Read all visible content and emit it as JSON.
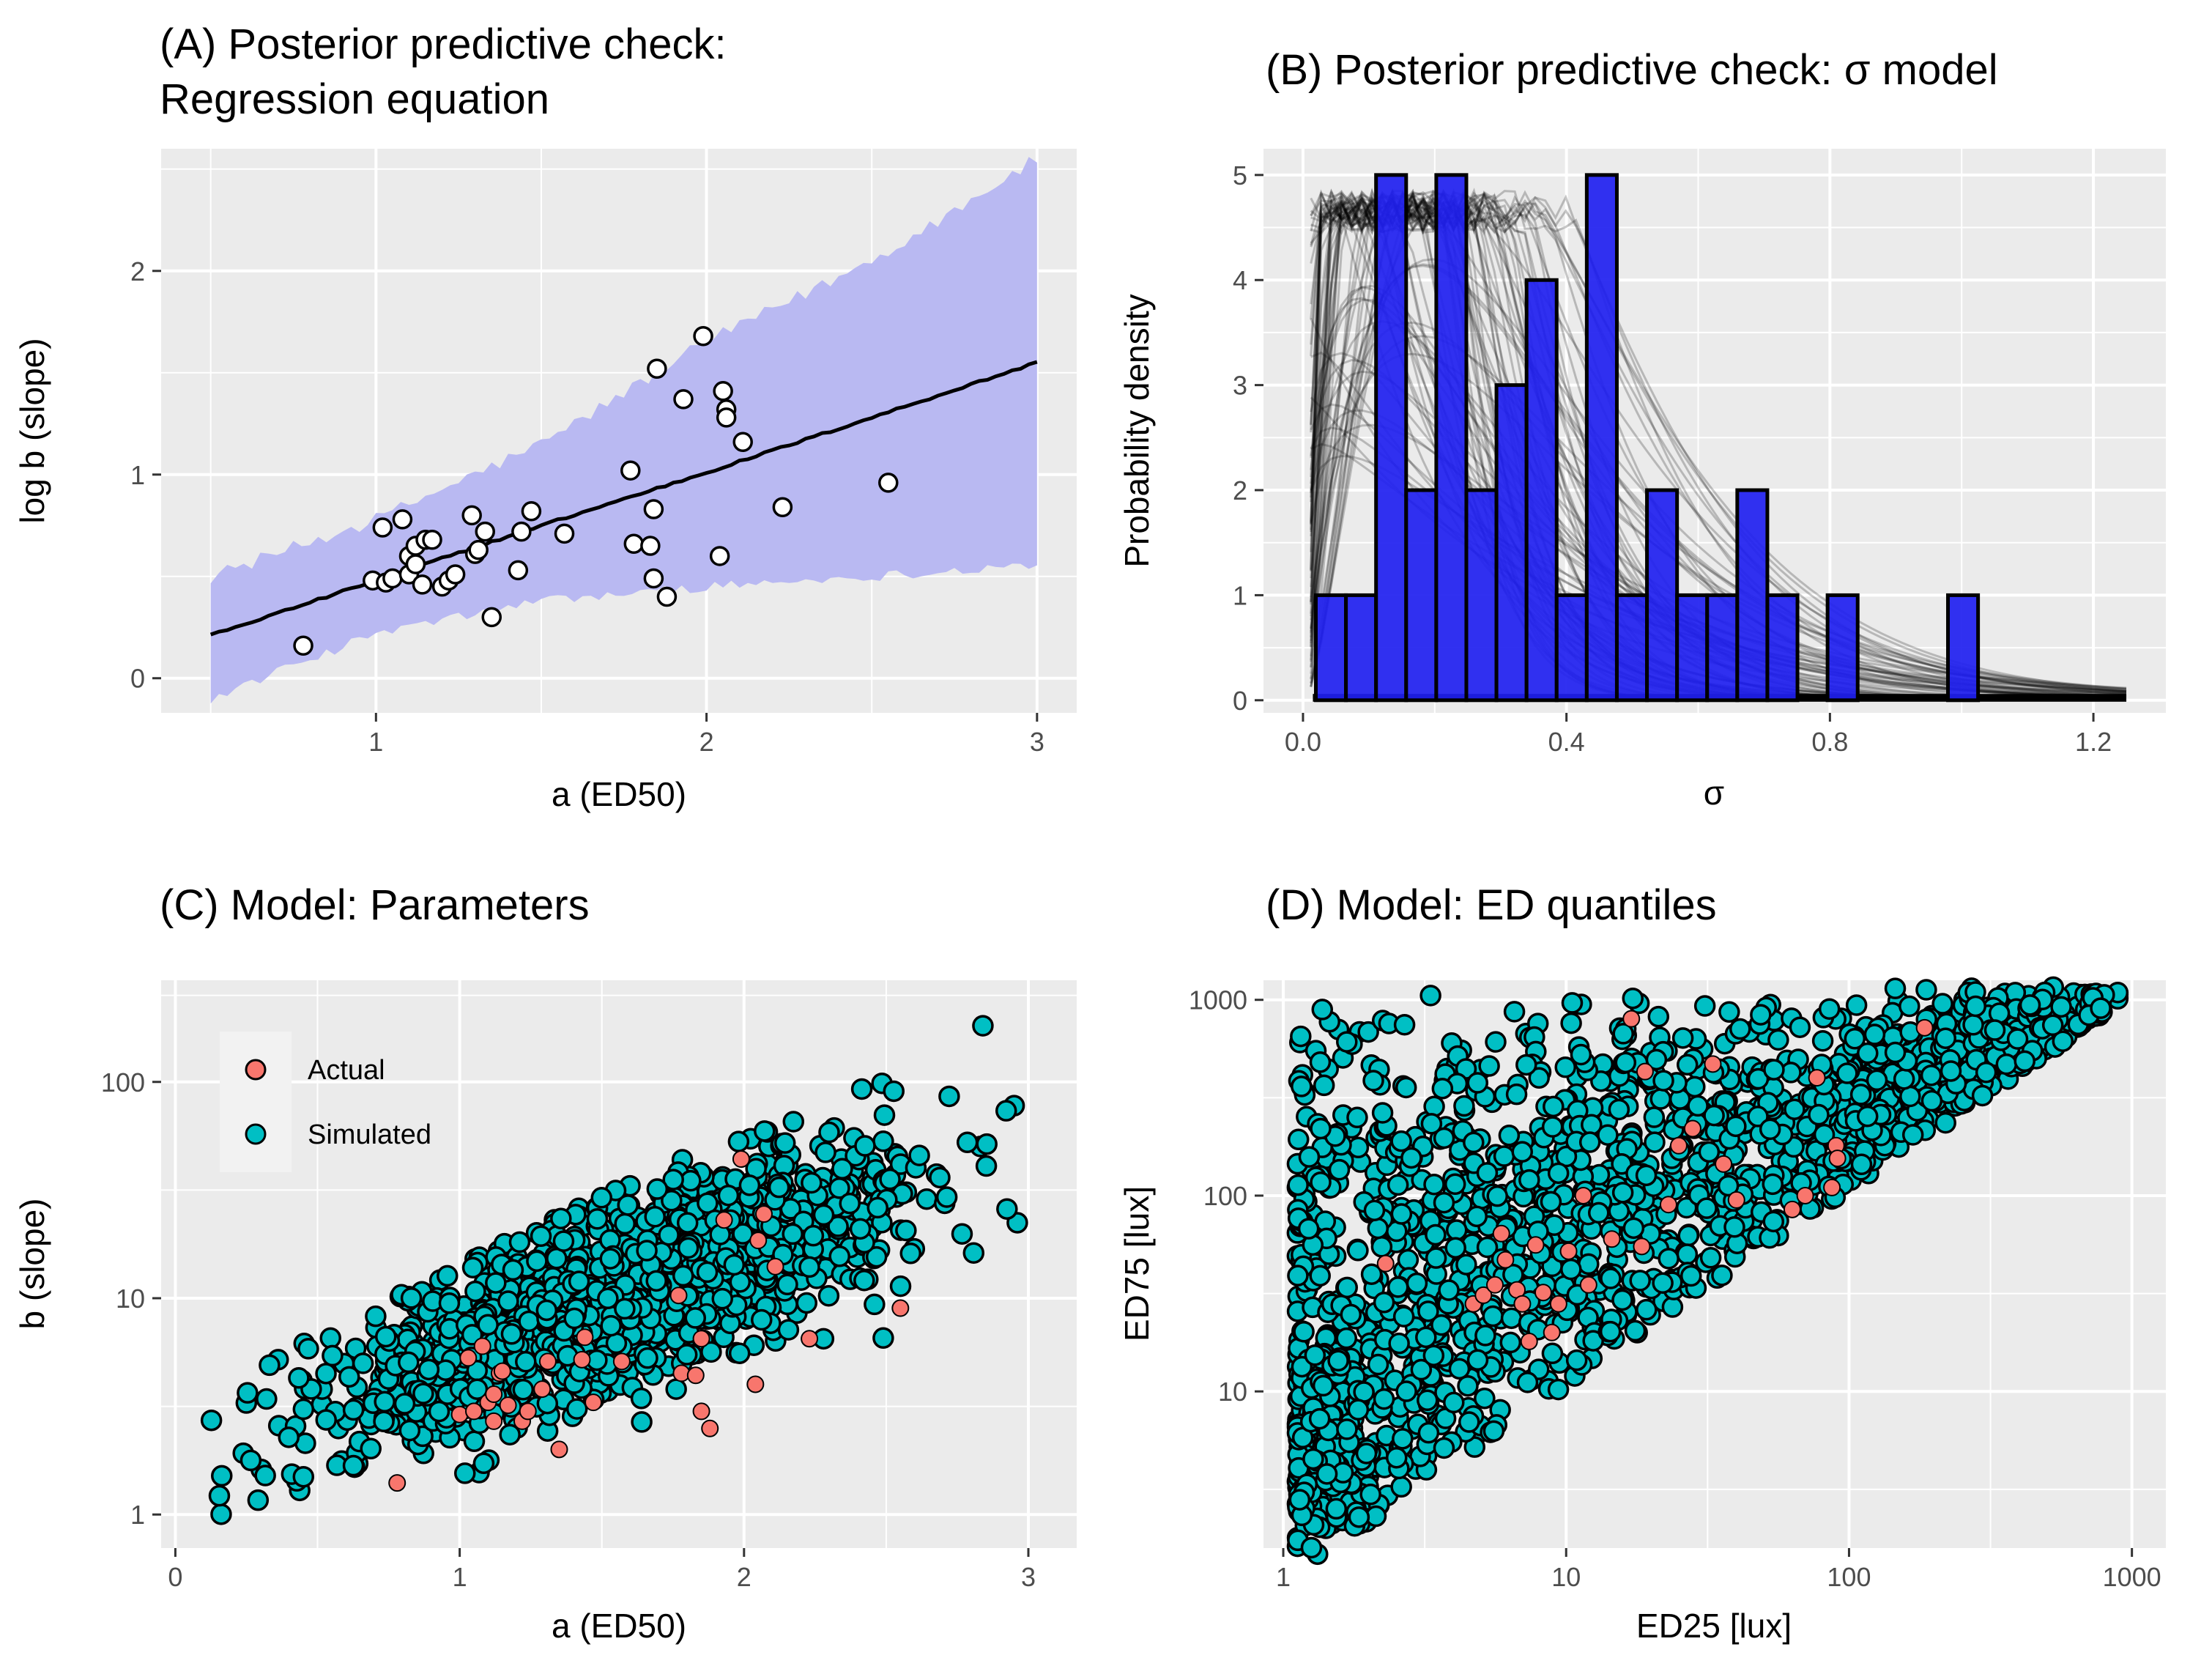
{
  "colors": {
    "panel_bg": "#ebebeb",
    "grid": "#ffffff",
    "ribbon": "#b9b9f2",
    "trend": "#000000",
    "hist_fill": "#2020f0",
    "actual": "#f8766d",
    "simulated": "#00bfc4",
    "tick_text": "#4d4d4d",
    "outline": "#000000"
  },
  "chart_data": [
    {
      "id": "A",
      "type": "scatter",
      "title_lines": [
        "(A) Posterior predictive check:",
        "Regression equation"
      ],
      "xlabel": "a (ED50)",
      "ylabel": "log b (slope)",
      "xlim": [
        0.35,
        3.12
      ],
      "ylim": [
        -0.17,
        2.6
      ],
      "xticks": [
        1,
        2,
        3
      ],
      "yticks": [
        0,
        1,
        2
      ],
      "trend": {
        "x": [
          0.5,
          1.0,
          1.5,
          2.0,
          2.5,
          3.0
        ],
        "y": [
          0.21,
          0.48,
          0.75,
          1.01,
          1.28,
          1.55
        ]
      },
      "ribbon": {
        "x": [
          0.5,
          1.0,
          1.5,
          2.0,
          2.5,
          3.0
        ],
        "lower": [
          -0.1,
          0.22,
          0.38,
          0.45,
          0.5,
          0.56
        ],
        "upper": [
          0.5,
          0.78,
          1.15,
          1.65,
          2.05,
          2.55
        ]
      },
      "points": {
        "x": [
          0.78,
          0.99,
          1.02,
          1.03,
          1.05,
          1.08,
          1.1,
          1.1,
          1.12,
          1.12,
          1.14,
          1.15,
          1.17,
          1.2,
          1.22,
          1.24,
          1.29,
          1.3,
          1.31,
          1.33,
          1.35,
          1.43,
          1.44,
          1.47,
          1.57,
          1.77,
          1.78,
          1.83,
          1.84,
          1.84,
          1.85,
          1.88,
          1.93,
          1.99,
          2.04,
          2.05,
          2.06,
          2.06,
          2.11,
          2.23,
          2.55
        ],
        "y": [
          0.16,
          0.48,
          0.74,
          0.47,
          0.49,
          0.78,
          0.51,
          0.6,
          0.56,
          0.65,
          0.46,
          0.68,
          0.68,
          0.45,
          0.48,
          0.51,
          0.8,
          0.61,
          0.63,
          0.72,
          0.3,
          0.53,
          0.72,
          0.82,
          0.71,
          1.02,
          0.66,
          0.65,
          0.83,
          0.49,
          1.52,
          0.4,
          1.37,
          1.68,
          0.6,
          1.41,
          1.32,
          1.28,
          1.16,
          0.84,
          0.96
        ]
      }
    },
    {
      "id": "B",
      "type": "bar",
      "title": "(B) Posterior predictive check: σ model",
      "xlabel": "σ",
      "ylabel": "Probability density",
      "xlim": [
        -0.06,
        1.31
      ],
      "ylim": [
        -0.12,
        5.25
      ],
      "xticks": [
        "0.0",
        "0.4",
        "0.8",
        "1.2"
      ],
      "xtick_values": [
        0,
        0.4,
        0.8,
        1.2
      ],
      "yticks": [
        0,
        1,
        2,
        3,
        4,
        5
      ],
      "bin_start": 0.0195,
      "bin_width": 0.0457,
      "values": [
        1,
        1,
        5,
        2,
        5,
        2,
        3,
        4,
        1,
        5,
        1,
        2,
        1,
        1,
        2,
        1,
        0,
        1,
        0,
        0,
        0,
        1,
        0,
        0,
        0,
        0,
        0,
        0
      ],
      "density_curves": {
        "x_max": 1.25,
        "density_ceiling": 4.85,
        "description_count": 80
      }
    },
    {
      "id": "C",
      "type": "scatter",
      "title": "(C) Model: Parameters",
      "xlabel": "a (ED50)",
      "ylabel": "b (slope)",
      "xlim": [
        -0.05,
        3.17
      ],
      "ylog_range": [
        -0.155,
        2.47
      ],
      "xticks": [
        0,
        1,
        2,
        3
      ],
      "yticks": [
        "1",
        "10",
        "100"
      ],
      "ytick_values": [
        1,
        10,
        100
      ],
      "legend": {
        "position": "top-left",
        "actual_label": "Actual",
        "simulated_label": "Simulated"
      },
      "simulated_count": 1800,
      "actual": {
        "x": [
          0.78,
          1.0,
          1.03,
          1.05,
          1.08,
          1.1,
          1.12,
          1.12,
          1.14,
          1.15,
          1.17,
          1.22,
          1.24,
          1.29,
          1.31,
          1.35,
          1.43,
          1.44,
          1.47,
          1.57,
          1.77,
          1.78,
          1.83,
          1.85,
          1.85,
          1.88,
          1.93,
          1.99,
          2.04,
          2.05,
          2.07,
          2.11,
          2.23,
          2.55
        ],
        "y": [
          1.4,
          2.9,
          5.3,
          3.0,
          6.0,
          3.3,
          3.6,
          2.7,
          4.5,
          4.6,
          3.2,
          2.7,
          3.0,
          3.8,
          5.1,
          2.0,
          5.2,
          6.6,
          3.3,
          5.1,
          10.3,
          4.5,
          4.4,
          3.0,
          6.5,
          2.5,
          23.0,
          44.0,
          4.0,
          18.5,
          24.5,
          14.0,
          6.5,
          9.0
        ]
      }
    },
    {
      "id": "D",
      "type": "scatter",
      "title": "(D) Model: ED quantiles",
      "xlabel": "ED25 [lux]",
      "ylabel": "ED75 [lux]",
      "xlog_range": [
        -0.07,
        3.12
      ],
      "ylog_range": [
        0.2,
        3.1
      ],
      "xticks": [
        "1",
        "10",
        "100",
        "1000"
      ],
      "xtick_values": [
        1,
        10,
        100,
        1000
      ],
      "yticks": [
        "10",
        "100",
        "1000"
      ],
      "ytick_values": [
        10,
        100,
        1000
      ],
      "simulated_count": 1800,
      "actual": {
        "x": [
          2.3,
          4.7,
          5.1,
          5.6,
          5.9,
          6.1,
          6.7,
          7.0,
          7.4,
          7.8,
          8.3,
          8.9,
          9.4,
          10.2,
          11.5,
          12.0,
          14.5,
          17.0,
          18.5,
          19.0,
          23.0,
          25.0,
          28.0,
          33.0,
          36.0,
          40.0,
          63.0,
          70.0,
          77.0,
          87.0,
          90.0,
          91.0,
          185.0
        ],
        "y": [
          45,
          28,
          31,
          35,
          64,
          47,
          33,
          28,
          18,
          56,
          32,
          20,
          28,
          52,
          100,
          35,
          60,
          800,
          55,
          430,
          90,
          180,
          220,
          470,
          145,
          95,
          85,
          100,
          400,
          110,
          180,
          155,
          720
        ]
      }
    }
  ]
}
